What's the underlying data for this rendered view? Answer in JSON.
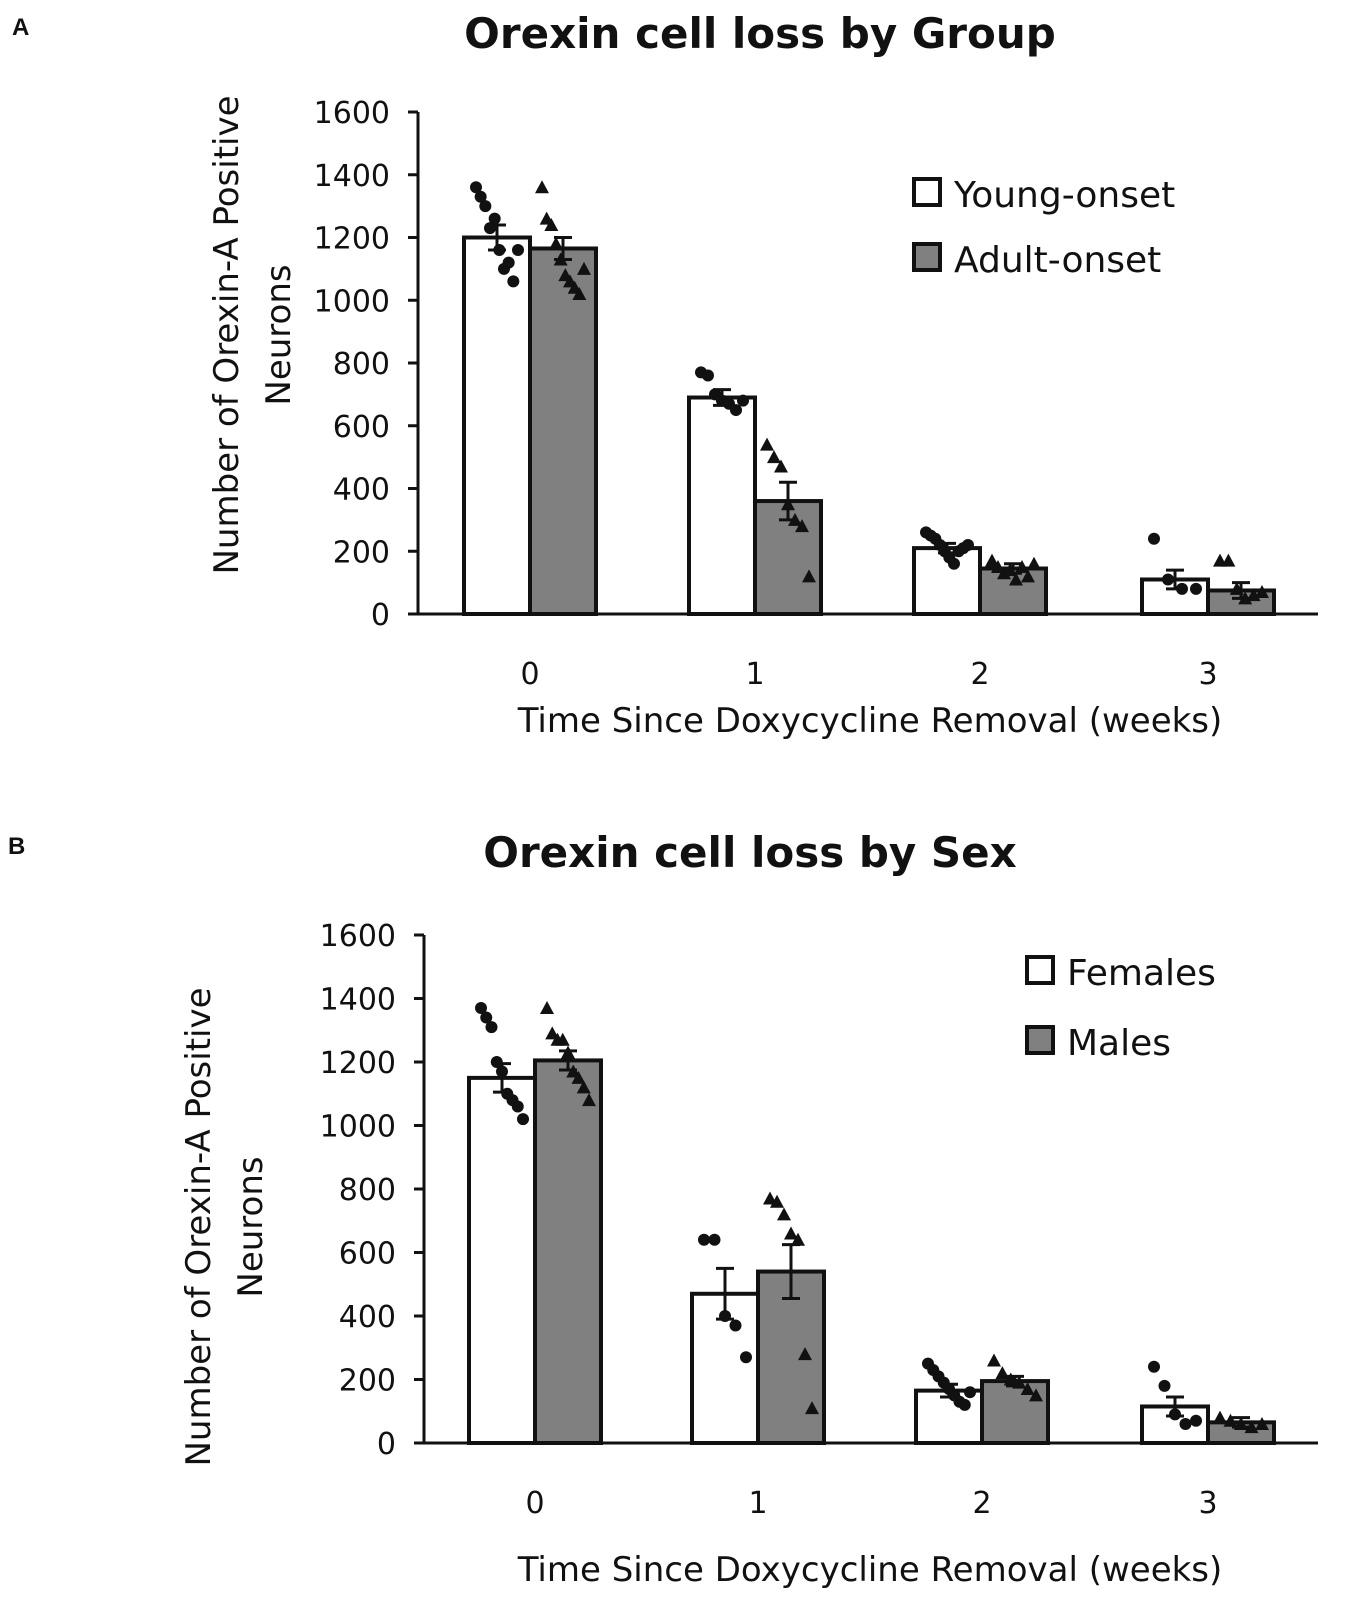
{
  "chart_data": [
    {
      "panel": "A",
      "type": "bar",
      "title": "Orexin cell loss by Group",
      "xlabel": "Time Since Doxycycline Removal (weeks)",
      "ylabel": [
        "Number of Orexin-A Positive",
        "Neurons"
      ],
      "categories": [
        "0",
        "1",
        "2",
        "3"
      ],
      "ylim": [
        0,
        1600
      ],
      "yticks": [
        0,
        200,
        400,
        600,
        800,
        1000,
        1200,
        1400,
        1600
      ],
      "legend_position": "top-right",
      "series": [
        {
          "name": "Young-onset",
          "fill": "#ffffff",
          "marker": "circle",
          "values": [
            1200,
            690,
            210,
            110
          ],
          "errors": [
            40,
            25,
            15,
            30
          ],
          "points": [
            [
              1360,
              1330,
              1300,
              1230,
              1260,
              1160,
              1100,
              1120,
              1060,
              1160
            ],
            [
              770,
              760,
              700,
              680,
              670,
              650,
              680
            ],
            [
              260,
              250,
              240,
              220,
              200,
              180,
              160,
              200,
              210,
              220
            ],
            [
              240,
              110,
              80,
              80
            ]
          ]
        },
        {
          "name": "Adult-onset",
          "fill": "#808080",
          "marker": "triangle",
          "values": [
            1165,
            360,
            145,
            75
          ],
          "errors": [
            35,
            60,
            15,
            25
          ],
          "points": [
            [
              1360,
              1260,
              1240,
              1180,
              1130,
              1080,
              1060,
              1040,
              1020,
              1100
            ],
            [
              540,
              500,
              470,
              350,
              300,
              280,
              120
            ],
            [
              170,
              150,
              130,
              140,
              110,
              150,
              120,
              160
            ],
            [
              170,
              170,
              80,
              50,
              60,
              70
            ]
          ]
        }
      ]
    },
    {
      "panel": "B",
      "type": "bar",
      "title": "Orexin cell loss by Sex",
      "xlabel": "Time Since Doxycycline Removal (weeks)",
      "ylabel": [
        "Number of Orexin-A Positive",
        "Neurons"
      ],
      "categories": [
        "0",
        "1",
        "2",
        "3"
      ],
      "ylim": [
        0,
        1600
      ],
      "yticks": [
        0,
        200,
        400,
        600,
        800,
        1000,
        1200,
        1400,
        1600
      ],
      "legend_position": "top-right",
      "series": [
        {
          "name": "Females",
          "fill": "#ffffff",
          "marker": "circle",
          "values": [
            1150,
            470,
            165,
            115
          ],
          "errors": [
            45,
            80,
            20,
            30
          ],
          "points": [
            [
              1370,
              1340,
              1310,
              1200,
              1170,
              1100,
              1080,
              1060,
              1020
            ],
            [
              640,
              640,
              400,
              370,
              270
            ],
            [
              250,
              230,
              210,
              190,
              170,
              150,
              130,
              120,
              160
            ],
            [
              240,
              180,
              90,
              60,
              70
            ]
          ]
        },
        {
          "name": "Males",
          "fill": "#808080",
          "marker": "triangle",
          "values": [
            1205,
            540,
            195,
            65
          ],
          "errors": [
            30,
            85,
            15,
            15
          ],
          "points": [
            [
              1370,
              1290,
              1270,
              1270,
              1230,
              1170,
              1150,
              1120,
              1080
            ],
            [
              770,
              760,
              720,
              660,
              640,
              280,
              110
            ],
            [
              260,
              220,
              200,
              190,
              170,
              150
            ],
            [
              80,
              70,
              60,
              50,
              60
            ]
          ]
        }
      ]
    }
  ]
}
